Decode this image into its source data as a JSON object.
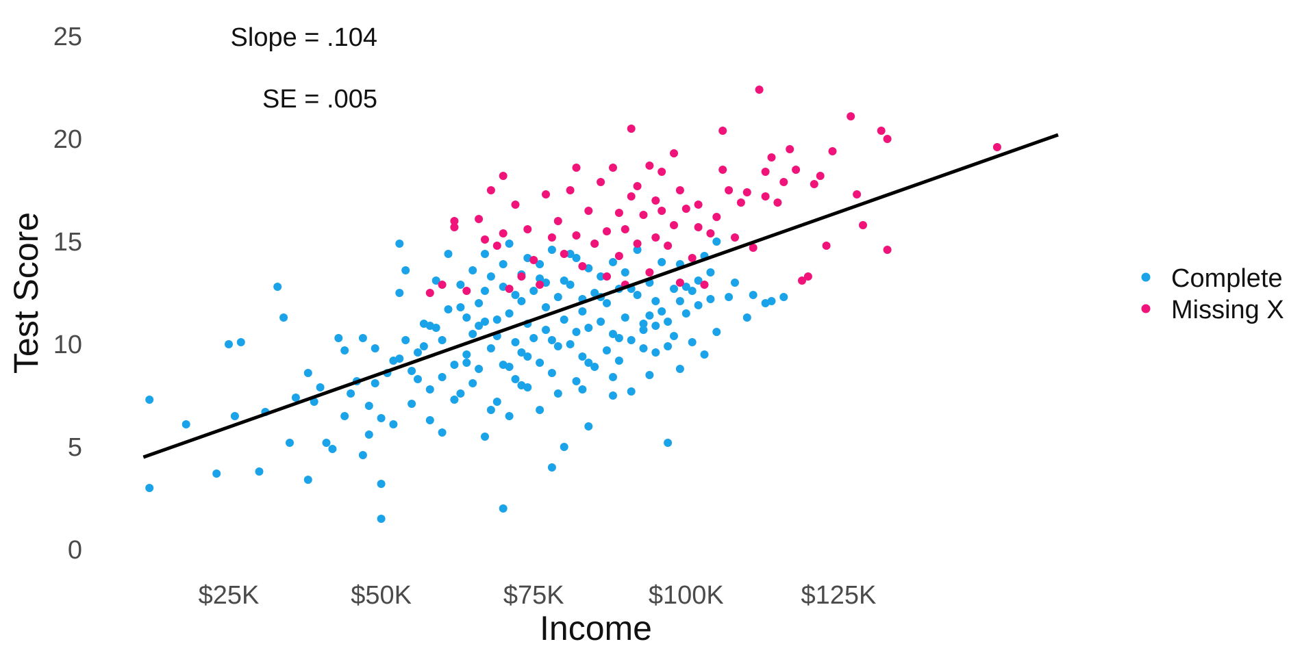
{
  "chart_data": {
    "type": "scatter",
    "xlabel": "Income",
    "ylabel": "Test Score",
    "xlim": [
      8,
      150
    ],
    "ylim": [
      0,
      25
    ],
    "x_ticks": [
      25,
      50,
      75,
      100,
      125
    ],
    "x_tick_labels": [
      "$25K",
      "$50K",
      "$75K",
      "$100K",
      "$125K"
    ],
    "y_ticks": [
      0,
      5,
      10,
      15,
      20,
      25
    ],
    "y_tick_labels": [
      "0",
      "5",
      "10",
      "15",
      "20",
      "25"
    ],
    "grid": false,
    "legend_position": "right",
    "annotations": [
      "Slope = .104",
      "SE = .005"
    ],
    "regression_line": {
      "x": [
        11,
        161
      ],
      "y": [
        4.5,
        20.2
      ]
    },
    "series": [
      {
        "name": "Complete",
        "color": "#1aa3e8",
        "points": [
          [
            12,
            3.0
          ],
          [
            12,
            7.3
          ],
          [
            18,
            6.1
          ],
          [
            23,
            3.7
          ],
          [
            25,
            10.0
          ],
          [
            26,
            6.5
          ],
          [
            27,
            10.1
          ],
          [
            30,
            3.8
          ],
          [
            31,
            6.7
          ],
          [
            33,
            12.8
          ],
          [
            34,
            11.3
          ],
          [
            35,
            5.2
          ],
          [
            36,
            7.4
          ],
          [
            38,
            3.4
          ],
          [
            38,
            8.6
          ],
          [
            39,
            7.2
          ],
          [
            40,
            7.9
          ],
          [
            41,
            5.2
          ],
          [
            42,
            4.9
          ],
          [
            43,
            10.3
          ],
          [
            44,
            6.5
          ],
          [
            44,
            9.7
          ],
          [
            46,
            8.2
          ],
          [
            47,
            10.3
          ],
          [
            47,
            4.6
          ],
          [
            48,
            5.6
          ],
          [
            48,
            7.0
          ],
          [
            49,
            9.8
          ],
          [
            50,
            3.2
          ],
          [
            50,
            1.5
          ],
          [
            50,
            6.4
          ],
          [
            51,
            8.6
          ],
          [
            52,
            9.2
          ],
          [
            52,
            6.1
          ],
          [
            53,
            12.5
          ],
          [
            53,
            14.9
          ],
          [
            54,
            10.2
          ],
          [
            54,
            13.6
          ],
          [
            55,
            7.1
          ],
          [
            56,
            8.3
          ],
          [
            56,
            9.6
          ],
          [
            57,
            11.0
          ],
          [
            58,
            7.8
          ],
          [
            58,
            6.3
          ],
          [
            59,
            10.8
          ],
          [
            59,
            13.1
          ],
          [
            60,
            5.7
          ],
          [
            60,
            8.4
          ],
          [
            61,
            11.7
          ],
          [
            61,
            14.4
          ],
          [
            62,
            9.0
          ],
          [
            63,
            12.9
          ],
          [
            63,
            7.6
          ],
          [
            64,
            11.3
          ],
          [
            64,
            9.5
          ],
          [
            65,
            13.6
          ],
          [
            65,
            10.5
          ],
          [
            66,
            12.0
          ],
          [
            66,
            8.8
          ],
          [
            67,
            14.4
          ],
          [
            67,
            11.1
          ],
          [
            67,
            5.5
          ],
          [
            68,
            9.8
          ],
          [
            68,
            13.3
          ],
          [
            69,
            10.4
          ],
          [
            69,
            7.2
          ],
          [
            70,
            12.8
          ],
          [
            70,
            9.0
          ],
          [
            70,
            2.0
          ],
          [
            71,
            14.9
          ],
          [
            71,
            11.5
          ],
          [
            71,
            6.5
          ],
          [
            72,
            10.1
          ],
          [
            72,
            8.3
          ],
          [
            73,
            13.4
          ],
          [
            73,
            9.6
          ],
          [
            73,
            12.1
          ],
          [
            74,
            14.2
          ],
          [
            74,
            7.9
          ],
          [
            74,
            11.0
          ],
          [
            75,
            10.3
          ],
          [
            75,
            12.6
          ],
          [
            76,
            9.1
          ],
          [
            76,
            13.9
          ],
          [
            76,
            6.8
          ],
          [
            77,
            11.8
          ],
          [
            77,
            10.7
          ],
          [
            78,
            14.6
          ],
          [
            78,
            8.6
          ],
          [
            78,
            4.0
          ],
          [
            79,
            12.3
          ],
          [
            79,
            9.9
          ],
          [
            80,
            13.1
          ],
          [
            80,
            11.2
          ],
          [
            80,
            5.0
          ],
          [
            81,
            10.0
          ],
          [
            81,
            12.9
          ],
          [
            82,
            8.2
          ],
          [
            82,
            14.2
          ],
          [
            83,
            11.6
          ],
          [
            83,
            9.4
          ],
          [
            83,
            12.2
          ],
          [
            84,
            13.7
          ],
          [
            84,
            10.8
          ],
          [
            84,
            6.0
          ],
          [
            85,
            12.5
          ],
          [
            85,
            8.9
          ],
          [
            85,
            14.9
          ],
          [
            86,
            11.1
          ],
          [
            86,
            13.3
          ],
          [
            87,
            9.7
          ],
          [
            87,
            12.0
          ],
          [
            88,
            14.0
          ],
          [
            88,
            10.5
          ],
          [
            88,
            7.5
          ],
          [
            89,
            12.7
          ],
          [
            89,
            9.2
          ],
          [
            90,
            13.5
          ],
          [
            90,
            11.3
          ],
          [
            91,
            10.2
          ],
          [
            91,
            7.7
          ],
          [
            92,
            14.6
          ],
          [
            92,
            12.4
          ],
          [
            93,
            11.0
          ],
          [
            93,
            9.8
          ],
          [
            94,
            13.0
          ],
          [
            94,
            8.5
          ],
          [
            95,
            12.1
          ],
          [
            95,
            10.9
          ],
          [
            96,
            11.6
          ],
          [
            96,
            14.0
          ],
          [
            97,
            9.9
          ],
          [
            97,
            5.2
          ],
          [
            98,
            12.7
          ],
          [
            98,
            10.4
          ],
          [
            99,
            13.9
          ],
          [
            99,
            8.8
          ],
          [
            100,
            11.5
          ],
          [
            100,
            12.8
          ],
          [
            101,
            10.1
          ],
          [
            102,
            13.1
          ],
          [
            102,
            11.9
          ],
          [
            103,
            9.5
          ],
          [
            103,
            14.3
          ],
          [
            104,
            12.2
          ],
          [
            105,
            15.0
          ],
          [
            105,
            10.6
          ],
          [
            107,
            12.3
          ],
          [
            108,
            13.0
          ],
          [
            110,
            11.3
          ],
          [
            111,
            12.4
          ],
          [
            113,
            12.0
          ],
          [
            114,
            12.1
          ],
          [
            116,
            12.3
          ],
          [
            64,
            9.1
          ],
          [
            66,
            10.9
          ],
          [
            69,
            11.2
          ],
          [
            72,
            12.4
          ],
          [
            77,
            13.0
          ],
          [
            82,
            10.6
          ],
          [
            86,
            12.3
          ],
          [
            91,
            12.7
          ],
          [
            95,
            9.6
          ],
          [
            60,
            10.2
          ],
          [
            57,
            9.9
          ],
          [
            55,
            8.7
          ],
          [
            62,
            7.3
          ],
          [
            65,
            8.1
          ],
          [
            68,
            6.8
          ],
          [
            71,
            8.9
          ],
          [
            74,
            9.4
          ],
          [
            79,
            7.6
          ],
          [
            84,
            9.1
          ],
          [
            89,
            10.3
          ],
          [
            94,
            11.4
          ],
          [
            99,
            12.1
          ],
          [
            104,
            13.5
          ],
          [
            81,
            14.4
          ],
          [
            76,
            13.2
          ],
          [
            70,
            13.9
          ],
          [
            67,
            12.6
          ],
          [
            63,
            11.8
          ],
          [
            58,
            10.9
          ],
          [
            53,
            9.3
          ],
          [
            49,
            8.1
          ],
          [
            45,
            7.6
          ],
          [
            73,
            8.0
          ],
          [
            78,
            10.2
          ],
          [
            83,
            7.8
          ],
          [
            88,
            8.4
          ],
          [
            93,
            10.7
          ],
          [
            97,
            11.1
          ],
          [
            101,
            12.6
          ]
        ]
      },
      {
        "name": "Missing X",
        "color": "#f0147a",
        "points": [
          [
            58,
            12.5
          ],
          [
            60,
            12.9
          ],
          [
            62,
            15.7
          ],
          [
            62,
            16.0
          ],
          [
            64,
            12.6
          ],
          [
            66,
            16.1
          ],
          [
            67,
            15.1
          ],
          [
            68,
            17.5
          ],
          [
            69,
            14.8
          ],
          [
            70,
            15.4
          ],
          [
            70,
            18.2
          ],
          [
            71,
            12.7
          ],
          [
            72,
            16.8
          ],
          [
            73,
            13.3
          ],
          [
            74,
            15.6
          ],
          [
            75,
            14.1
          ],
          [
            76,
            12.9
          ],
          [
            77,
            17.3
          ],
          [
            78,
            15.2
          ],
          [
            79,
            16.0
          ],
          [
            80,
            14.4
          ],
          [
            81,
            17.5
          ],
          [
            82,
            18.6
          ],
          [
            82,
            15.3
          ],
          [
            83,
            13.8
          ],
          [
            84,
            16.5
          ],
          [
            85,
            14.9
          ],
          [
            86,
            17.9
          ],
          [
            87,
            13.3
          ],
          [
            87,
            15.5
          ],
          [
            88,
            18.6
          ],
          [
            89,
            14.3
          ],
          [
            89,
            16.4
          ],
          [
            90,
            12.9
          ],
          [
            90,
            15.6
          ],
          [
            91,
            17.2
          ],
          [
            91,
            20.5
          ],
          [
            92,
            14.9
          ],
          [
            92,
            17.7
          ],
          [
            93,
            16.3
          ],
          [
            94,
            18.7
          ],
          [
            94,
            13.5
          ],
          [
            95,
            15.2
          ],
          [
            95,
            17.0
          ],
          [
            96,
            18.4
          ],
          [
            96,
            16.5
          ],
          [
            97,
            14.8
          ],
          [
            98,
            19.3
          ],
          [
            98,
            15.8
          ],
          [
            99,
            17.5
          ],
          [
            99,
            13.0
          ],
          [
            100,
            16.6
          ],
          [
            101,
            14.2
          ],
          [
            102,
            15.7
          ],
          [
            102,
            16.8
          ],
          [
            103,
            12.9
          ],
          [
            104,
            15.4
          ],
          [
            105,
            16.2
          ],
          [
            106,
            20.4
          ],
          [
            106,
            18.5
          ],
          [
            107,
            17.5
          ],
          [
            108,
            15.2
          ],
          [
            109,
            16.9
          ],
          [
            110,
            17.4
          ],
          [
            111,
            14.7
          ],
          [
            112,
            22.4
          ],
          [
            113,
            18.4
          ],
          [
            113,
            17.2
          ],
          [
            114,
            19.1
          ],
          [
            115,
            16.9
          ],
          [
            116,
            17.9
          ],
          [
            117,
            19.5
          ],
          [
            118,
            18.5
          ],
          [
            119,
            13.1
          ],
          [
            120,
            13.3
          ],
          [
            121,
            17.8
          ],
          [
            122,
            18.2
          ],
          [
            123,
            14.8
          ],
          [
            124,
            19.4
          ],
          [
            127,
            21.1
          ],
          [
            128,
            17.3
          ],
          [
            129,
            15.8
          ],
          [
            132,
            20.4
          ],
          [
            133,
            20.0
          ],
          [
            133,
            14.6
          ],
          [
            151,
            19.6
          ]
        ]
      }
    ]
  }
}
